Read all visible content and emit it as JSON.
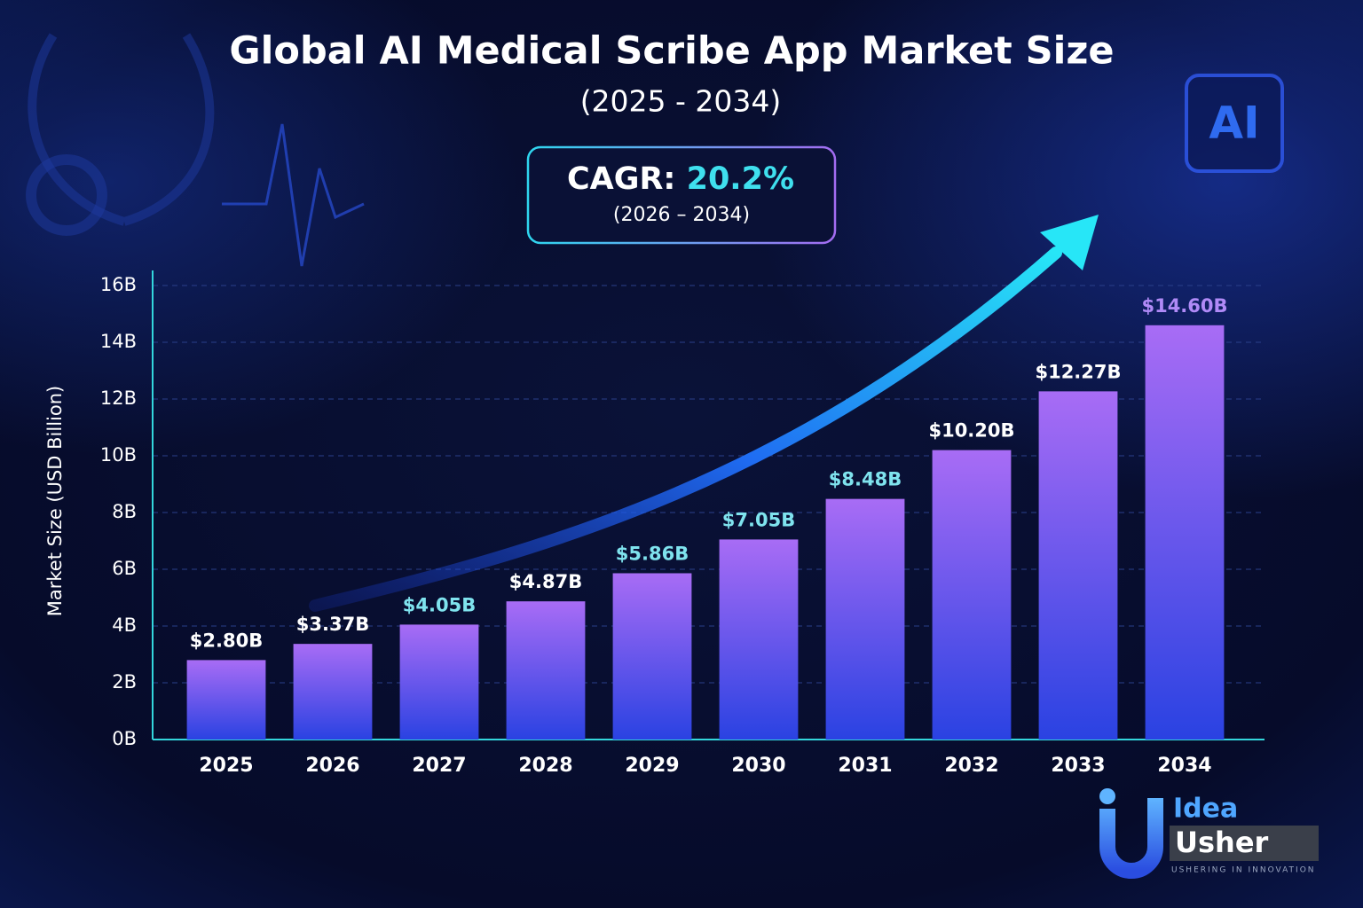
{
  "chart_data": {
    "type": "bar",
    "title": "Global AI Medical Scribe App Market Size",
    "subtitle": "(2025 - 2034)",
    "annotations": {
      "cagr_label": "CAGR:",
      "cagr_value": "20.2%",
      "cagr_period": "(2026 – 2034)"
    },
    "y_label": "Market Size (USD Billion)",
    "categories": [
      "2025",
      "2026",
      "2027",
      "2028",
      "2029",
      "2030",
      "2031",
      "2032",
      "2033",
      "2034"
    ],
    "values": [
      2.8,
      3.37,
      4.05,
      4.87,
      5.86,
      7.05,
      8.48,
      10.2,
      12.27,
      14.6
    ],
    "value_labels": [
      "$2.80B",
      "$3.37B",
      "$4.05B",
      "$4.87B",
      "$5.86B",
      "$7.05B",
      "$8.48B",
      "$10.20B",
      "$12.27B",
      "$14.60B"
    ],
    "value_label_colors": [
      "#ffffff",
      "#ffffff",
      "#7fe3ee",
      "#ffffff",
      "#7fe3ee",
      "#7fe3ee",
      "#7fe3ee",
      "#ffffff",
      "#ffffff",
      "#b08af7"
    ],
    "gradient": [
      "#a86cf5",
      "#2a42e2"
    ],
    "ylim": [
      0,
      16
    ],
    "yticks": [
      {
        "value": 0,
        "label": "0B"
      },
      {
        "value": 2,
        "label": "2B"
      },
      {
        "value": 4,
        "label": "4B"
      },
      {
        "value": 6,
        "label": "6B"
      },
      {
        "value": 8,
        "label": "8B"
      },
      {
        "value": 10,
        "label": "10B"
      },
      {
        "value": 12,
        "label": "12B"
      },
      {
        "value": 14,
        "label": "14B"
      },
      {
        "value": 16,
        "label": "16B"
      }
    ],
    "grid": true
  },
  "decor": {
    "chip_label": "AI"
  },
  "logo": {
    "line1": "Idea",
    "line2": "Usher",
    "tagline": "USHERING IN INNOVATION"
  }
}
